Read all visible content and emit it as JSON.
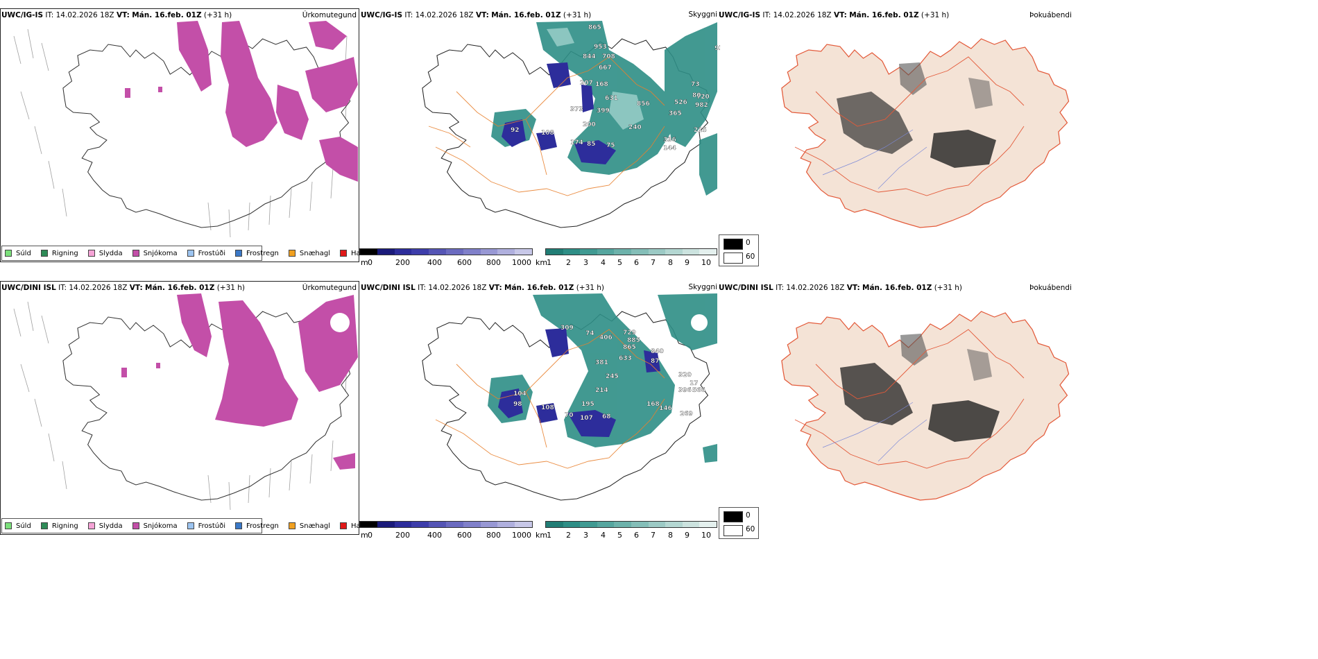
{
  "colors": {
    "snow": "#c34fa8",
    "cloud": "#2e8e86",
    "cloudLight": "#9fd1cc",
    "mountain": "#2d2d9b",
    "road": "#e8802e",
    "land": "#f4e3d6",
    "redRoad": "#e35a3a",
    "river": "#7d8ad8"
  },
  "rows": [
    {
      "model": "UWC/IG-IS",
      "it_label": "IT:",
      "it_value": "14.02.2026 18Z",
      "vt_label": "VT:",
      "vt_value": "Mán. 16.feb. 01Z",
      "lead": "(+31 h)",
      "panel_titles": [
        "Úrkomutegund",
        "Skyggni",
        "Þokuábendi"
      ],
      "labels": [
        "865",
        "953",
        "844",
        "708",
        "667",
        "168",
        "207",
        "631",
        "856",
        "399",
        "373",
        "365",
        "526",
        "720",
        "982",
        "73",
        "80",
        "215",
        "200",
        "240",
        "92",
        "108",
        "174",
        "85",
        "75",
        "144",
        "336",
        "934"
      ]
    },
    {
      "model": "UWC/DINI ISL",
      "it_label": "IT:",
      "it_value": "14.02.2026 18Z",
      "vt_label": "VT:",
      "vt_value": "Mán. 16.feb. 01Z",
      "lead": "(+31 h)",
      "panel_titles": [
        "Úrkomutegund",
        "Skyggni",
        "Þokuábendi"
      ],
      "labels": [
        "309",
        "74",
        "406",
        "729",
        "885",
        "865",
        "633",
        "381",
        "245",
        "214",
        "195",
        "104",
        "98",
        "108",
        "70",
        "107",
        "68",
        "168",
        "146",
        "320",
        "396",
        "566",
        "269",
        "840",
        "87",
        "17"
      ]
    }
  ],
  "precip_legend": [
    {
      "label": "Súld",
      "color": "#7be07b"
    },
    {
      "label": "Rigning",
      "color": "#2e8b57"
    },
    {
      "label": "Slydda",
      "color": "#f5a3d6"
    },
    {
      "label": "Snjókoma",
      "color": "#c34fa8"
    },
    {
      "label": "Frostúði",
      "color": "#9cc4f0"
    },
    {
      "label": "Frostregn",
      "color": "#3a78c7"
    },
    {
      "label": "Snæhagl",
      "color": "#f0a020"
    },
    {
      "label": "Haglél",
      "color": "#e01818"
    }
  ],
  "ceiling_bar": {
    "unit": "m",
    "ticks": [
      "0",
      "200",
      "400",
      "600",
      "800",
      "1000"
    ],
    "colors": [
      "#000000",
      "#1a1a7a",
      "#2d2d9b",
      "#3d3daa",
      "#5555b5",
      "#6b6bc0",
      "#8080ca",
      "#9898d4",
      "#b0b0de",
      "#c8c8e8"
    ]
  },
  "vis_bar": {
    "unit": "km",
    "ticks": [
      "1",
      "2",
      "3",
      "4",
      "5",
      "6",
      "7",
      "8",
      "9",
      "10"
    ],
    "colors": [
      "#217d75",
      "#2e8e86",
      "#409a92",
      "#56a69f",
      "#6db2ab",
      "#84beb8",
      "#9ccac5",
      "#b4d7d2",
      "#cce3df",
      "#e4f0ee"
    ]
  },
  "fog_legend": {
    "top": "0",
    "bottom": "60"
  }
}
